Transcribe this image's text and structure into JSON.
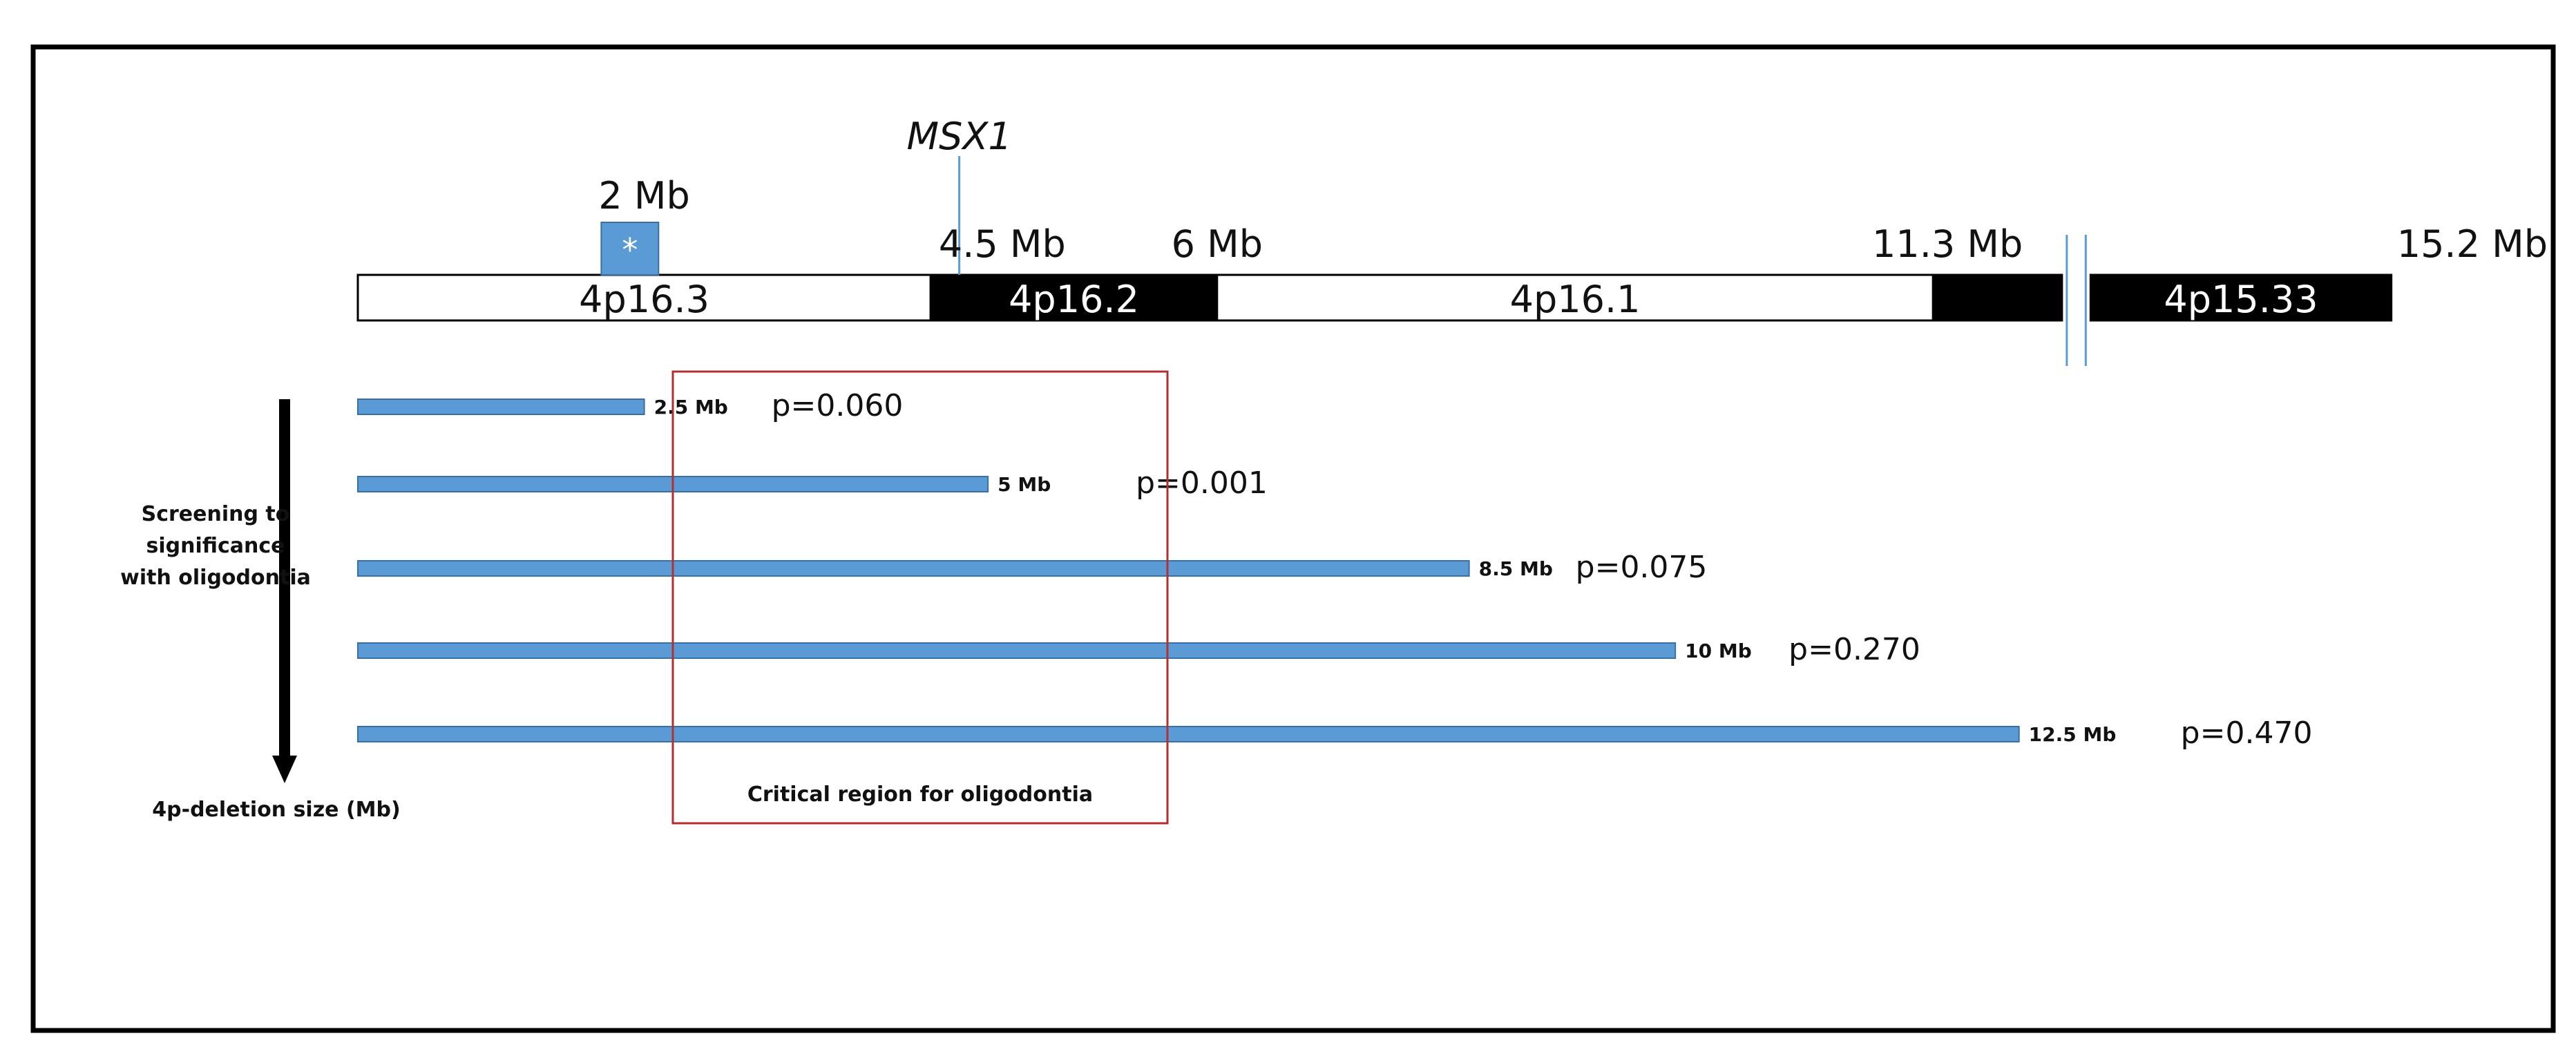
{
  "chromosome": {
    "bands": [
      {
        "label": "4p16.3",
        "start": 0,
        "end": 4.0,
        "fill": "#ffffff"
      },
      {
        "label": "4p16.2",
        "start": 4.0,
        "end": 6.0,
        "fill": "#000000"
      },
      {
        "label": "4p16.1",
        "start": 6.0,
        "end": 11.0,
        "fill": "#ffffff"
      },
      {
        "label": "",
        "start": 11.0,
        "end": 11.9,
        "fill": "#000000"
      },
      {
        "label": "4p15.33",
        "start": 12.1,
        "end": 14.2,
        "fill": "#000000"
      }
    ],
    "positions": [
      {
        "label": "2 Mb",
        "mb": 2.0
      },
      {
        "label": "4.5 Mb",
        "mb": 4.5
      },
      {
        "label": "6 Mb",
        "mb": 6.0
      },
      {
        "label": "11.3 Mb",
        "mb": 11.3
      },
      {
        "label": "15.2 Mb",
        "mb": 15.2
      }
    ],
    "asterisk": {
      "label": "*",
      "start": 1.7,
      "end": 2.1,
      "color": "#5b9bd5"
    },
    "gene": {
      "label": "MSX1",
      "mb": 4.2
    }
  },
  "deletions": [
    {
      "size": 2.5,
      "size_label": "2.5 Mb",
      "p_label": "p=0.060"
    },
    {
      "size": 5.0,
      "size_label": "5 Mb",
      "p_label": "p=0.001"
    },
    {
      "size": 8.5,
      "size_label": "8.5 Mb",
      "p_label": "p=0.075"
    },
    {
      "size": 10.0,
      "size_label": "10 Mb",
      "p_label": "p=0.270"
    },
    {
      "size": 12.5,
      "size_label": "12.5 Mb",
      "p_label": "p=0.470"
    }
  ],
  "critical_region": {
    "label": "Critical region for oligodontia",
    "start": 2.1,
    "end": 5.4,
    "color": "#b03030"
  },
  "side_labels": {
    "screening": [
      "Screening to",
      "significance",
      "with oligodontia"
    ],
    "axis": "4p-deletion size (Mb)"
  },
  "colors": {
    "bar": "#5b9bd5",
    "bar_stroke": "#3a6fa6",
    "frame": "#000000"
  }
}
